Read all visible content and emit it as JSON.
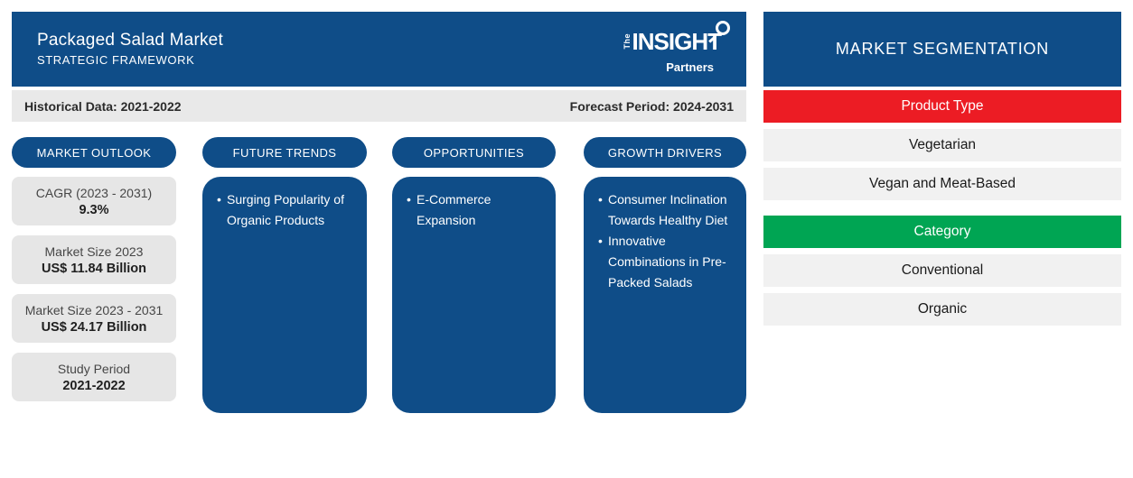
{
  "header": {
    "title": "Packaged Salad Market",
    "subtitle": "STRATEGIC FRAMEWORK",
    "logo": {
      "the": "The",
      "insight": "INSIGHT",
      "partners": "Partners"
    }
  },
  "period_bar": {
    "historical_label": "Historical Data: 2021-2022",
    "forecast_label": "Forecast Period: 2024-2031"
  },
  "outlook": {
    "pill": "MARKET OUTLOOK",
    "stats": [
      {
        "label": "CAGR (2023 - 2031)",
        "value": "9.3%"
      },
      {
        "label": "Market Size 2023",
        "value": "US$ 11.84 Billion"
      },
      {
        "label": "Market Size 2023 - 2031",
        "value": "US$ 24.17 Billion"
      },
      {
        "label": "Study Period",
        "value": "2021-2022"
      }
    ]
  },
  "future_trends": {
    "pill": "FUTURE TRENDS",
    "bullets": [
      "Surging Popularity of Organic Products"
    ]
  },
  "opportunities": {
    "pill": "OPPORTUNITIES",
    "bullets": [
      "E-Commerce Expansion"
    ]
  },
  "growth_drivers": {
    "pill": "GROWTH DRIVERS",
    "bullets": [
      "Consumer Inclination Towards Healthy Diet",
      "Innovative Combinations in Pre-Packed Salads"
    ]
  },
  "segmentation": {
    "title": "MARKET SEGMENTATION",
    "product_type": {
      "label": "Product Type",
      "items": [
        "Vegetarian",
        "Vegan and Meat-Based"
      ]
    },
    "category": {
      "label": "Category",
      "items": [
        "Conventional",
        "Organic"
      ]
    }
  },
  "ui": {
    "bullet": "•"
  },
  "colors": {
    "brand_blue": "#0f4d88",
    "accent_red": "#ec1c24",
    "accent_green": "#00a553",
    "period_bar_gray": "#e9e9e9",
    "stat_box_gray": "#e6e6e6",
    "seg_item_gray": "#f1f1f1"
  }
}
